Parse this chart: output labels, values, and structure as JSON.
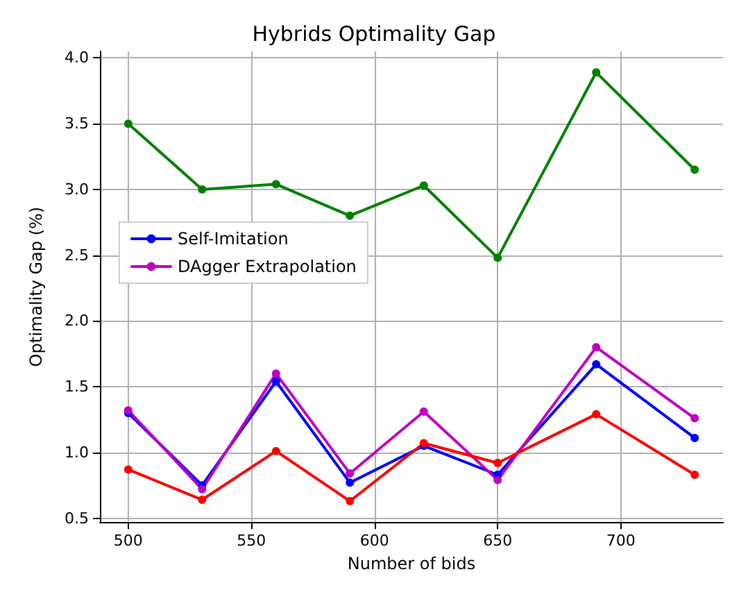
{
  "chart_data": {
    "type": "line",
    "title": "Hybrids Optimality Gap",
    "xlabel": "Number of bids",
    "ylabel": "Optimality Gap (%)",
    "x": [
      500,
      530,
      560,
      590,
      620,
      650,
      690,
      730
    ],
    "series": [
      {
        "name": "Self-Imitation",
        "color": "#0000ff",
        "values": [
          1.3,
          0.75,
          1.54,
          0.77,
          1.05,
          0.83,
          1.67,
          1.11
        ]
      },
      {
        "name": "DAgger Extrapolation",
        "color": "#bf00bf",
        "values": [
          1.32,
          0.72,
          1.6,
          0.84,
          1.31,
          0.79,
          1.8,
          1.26
        ]
      },
      {
        "color": "#ff0000",
        "values": [
          0.87,
          0.64,
          1.01,
          0.63,
          1.07,
          0.92,
          1.29,
          0.83
        ]
      },
      {
        "color": "#008000",
        "values": [
          3.5,
          3.0,
          3.04,
          2.8,
          3.03,
          2.48,
          3.89,
          3.15
        ]
      }
    ],
    "xlim": [
      488.5,
      741.5
    ],
    "xticks": [
      500,
      550,
      600,
      650,
      700
    ],
    "ylim": [
      0.47,
      4.05
    ],
    "yticks": [
      0.5,
      {
        "value": 1,
        "label": "1.0"
      },
      1.5,
      {
        "value": 2,
        "label": "2.0"
      },
      2.5,
      {
        "value": 3,
        "label": "3.0"
      },
      3.5,
      {
        "value": 4,
        "label": "4.0"
      }
    ],
    "grid": true,
    "legend": "center left",
    "marker": "circle",
    "line_style": "solid"
  }
}
